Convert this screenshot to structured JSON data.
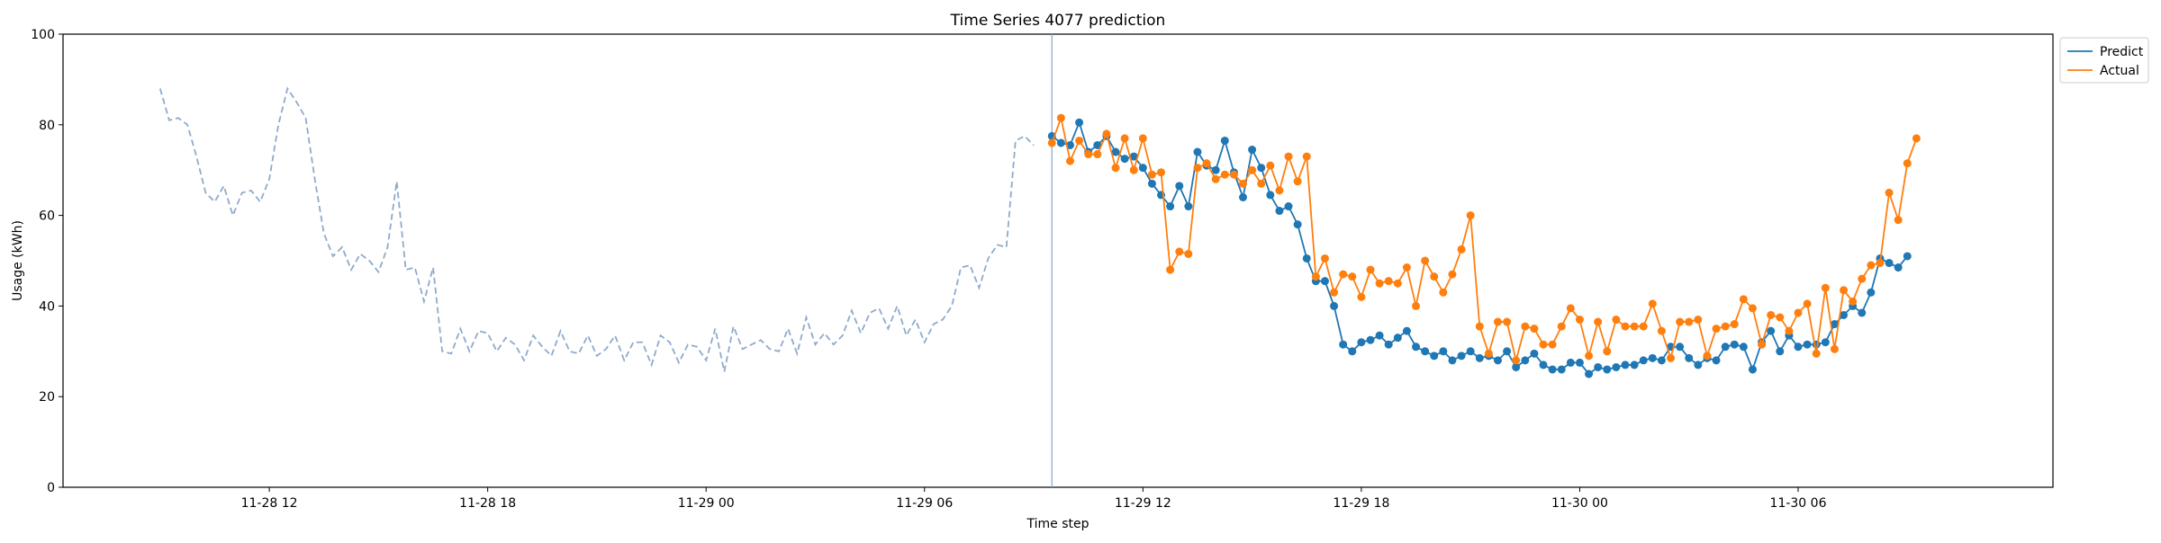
{
  "chart_data": {
    "type": "line",
    "title": "Time Series 4077 prediction",
    "xlabel": "Time step",
    "ylabel": "Usage (kWh)",
    "ylim": [
      0,
      100
    ],
    "yticks": [
      0,
      20,
      40,
      60,
      80,
      100
    ],
    "xlim": [
      "2024-11-28 06:20",
      "2024-11-30 13:00"
    ],
    "xticks": [
      {
        "value": "2024-11-28 12:00",
        "label": "11-28 12"
      },
      {
        "value": "2024-11-28 18:00",
        "label": "11-28 18"
      },
      {
        "value": "2024-11-29 00:00",
        "label": "11-29 00"
      },
      {
        "value": "2024-11-29 06:00",
        "label": "11-29 06"
      },
      {
        "value": "2024-11-29 12:00",
        "label": "11-29 12"
      },
      {
        "value": "2024-11-29 18:00",
        "label": "11-29 18"
      },
      {
        "value": "2024-11-30 00:00",
        "label": "11-30 00"
      },
      {
        "value": "2024-11-30 06:00",
        "label": "11-30 06"
      }
    ],
    "grid": false,
    "legend_position": "upper-right outside",
    "forecast_start": "2024-11-29 09:30",
    "history": {
      "start": "2024-11-28 09:00",
      "step_minutes": 15,
      "color": "#8faacc",
      "style": "dashed",
      "values": [
        88,
        81,
        81.5,
        80,
        73,
        65,
        63,
        66.5,
        60,
        65,
        65.5,
        63,
        68,
        80,
        88,
        85,
        81.5,
        68,
        56,
        51,
        53,
        48,
        51.5,
        50,
        47.5,
        53,
        67.5,
        48,
        48.5,
        41,
        48.5,
        30,
        29.5,
        35,
        30,
        34.5,
        34,
        30,
        33,
        31.5,
        28,
        33.5,
        31,
        29,
        34.5,
        30,
        29.5,
        33.5,
        29,
        30.5,
        33.5,
        28,
        32,
        32,
        27,
        33.5,
        32,
        27.5,
        31.5,
        31,
        28,
        35,
        25.5,
        35.5,
        30.5,
        31.5,
        32.5,
        30.5,
        30,
        35,
        29.5,
        37.5,
        31.5,
        34,
        31.5,
        33.5,
        39,
        34,
        38.5,
        39.5,
        35,
        40,
        33.5,
        37,
        32,
        36,
        37,
        40,
        48.5,
        49,
        44,
        50.5,
        53.5,
        53,
        76.5,
        77.5,
        75.5
      ]
    },
    "series": [
      {
        "name": "Predict",
        "color": "#1f77b4",
        "start": "2024-11-29 09:30",
        "step_minutes": 15,
        "values": [
          77.5,
          76,
          75.5,
          80.5,
          74,
          75.5,
          77.5,
          74,
          72.5,
          73,
          70.5,
          67,
          64.5,
          62,
          66.5,
          62,
          74,
          71,
          70,
          76.5,
          69.5,
          64,
          74.5,
          70.5,
          64.5,
          61,
          62,
          58,
          50.5,
          45.5,
          45.5,
          40,
          31.5,
          30,
          32,
          32.5,
          33.5,
          31.5,
          33,
          34.5,
          31,
          30,
          29,
          30,
          28,
          29,
          30,
          28.5,
          29,
          28,
          30,
          26.5,
          28,
          29.5,
          27,
          26,
          26,
          27.5,
          27.5,
          25,
          26.5,
          26,
          26.5,
          27,
          27,
          28,
          28.5,
          28,
          31,
          31,
          28.5,
          27,
          28.5,
          28,
          31,
          31.5,
          31,
          26,
          32,
          34.5,
          30,
          33.5,
          31,
          31.5,
          31.5,
          32,
          36,
          38,
          40,
          38.5,
          43,
          50.5,
          49.5,
          48.5,
          51
        ]
      },
      {
        "name": "Actual",
        "color": "#ff7f0e",
        "start": "2024-11-29 09:30",
        "step_minutes": 15,
        "values": [
          76,
          81.5,
          72,
          76.5,
          73.5,
          73.5,
          78,
          70.5,
          77,
          70,
          77,
          69,
          69.5,
          48,
          52,
          51.5,
          70.5,
          71.5,
          68,
          69,
          69,
          67,
          70,
          67,
          71,
          65.5,
          73,
          67.5,
          73,
          46.5,
          50.5,
          43,
          47,
          46.5,
          42,
          48,
          45,
          45.5,
          45,
          48.5,
          40,
          50,
          46.5,
          43,
          47,
          52.5,
          60,
          35.5,
          29.5,
          36.5,
          36.5,
          28,
          35.5,
          35,
          31.5,
          31.5,
          35.5,
          39.5,
          37,
          29,
          36.5,
          30,
          37,
          35.5,
          35.5,
          35.5,
          40.5,
          34.5,
          28.5,
          36.5,
          36.5,
          37,
          29,
          35,
          35.5,
          36,
          41.5,
          39.5,
          31.5,
          38,
          37.5,
          34.5,
          38.5,
          40.5,
          29.5,
          44,
          30.5,
          43.5,
          41,
          46,
          49,
          49.5,
          65,
          59,
          71.5,
          77
        ]
      }
    ]
  }
}
